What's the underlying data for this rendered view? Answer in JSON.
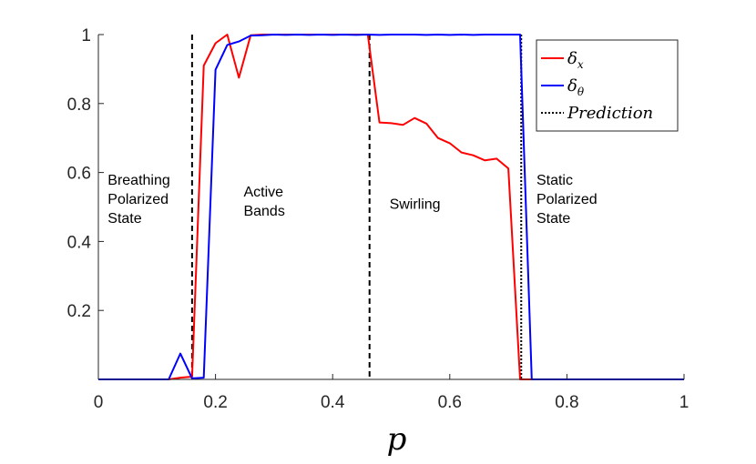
{
  "chart_data": {
    "type": "line",
    "title": "",
    "xlabel": "p",
    "ylabel": "",
    "xlim": [
      0,
      1
    ],
    "ylim": [
      0,
      1
    ],
    "xticks": [
      0,
      0.2,
      0.4,
      0.6,
      0.8,
      1
    ],
    "xtick_labels": [
      "0",
      "0.2",
      "0.4",
      "0.6",
      "0.8",
      "1"
    ],
    "yticks": [
      0.2,
      0.4,
      0.6,
      0.8,
      1
    ],
    "ytick_labels": [
      "0.2",
      "0.4",
      "0.6",
      "0.8",
      "1"
    ],
    "x": [
      0,
      0.02,
      0.04,
      0.06,
      0.08,
      0.1,
      0.12,
      0.14,
      0.16,
      0.18,
      0.2,
      0.22,
      0.24,
      0.26,
      0.28,
      0.3,
      0.32,
      0.34,
      0.36,
      0.38,
      0.4,
      0.42,
      0.44,
      0.46,
      0.48,
      0.5,
      0.52,
      0.54,
      0.56,
      0.58,
      0.6,
      0.62,
      0.64,
      0.66,
      0.68,
      0.7,
      0.72,
      0.74,
      0.76,
      0.78,
      0.8,
      0.82,
      0.84,
      0.86,
      0.88,
      0.9,
      0.92,
      0.94,
      0.96,
      0.98,
      1.0
    ],
    "series": [
      {
        "name": "δ_x",
        "color": "#ff0000",
        "values": [
          0,
          0,
          0,
          0,
          0,
          0,
          0,
          0.005,
          0.008,
          0.91,
          0.975,
          1.0,
          0.875,
          0.998,
          1.0,
          1.0,
          1.0,
          1.0,
          1.0,
          1.0,
          1.0,
          1.0,
          1.0,
          1.0,
          0.745,
          0.743,
          0.738,
          0.758,
          0.742,
          0.7,
          0.685,
          0.658,
          0.65,
          0.635,
          0.64,
          0.612,
          0,
          0,
          0,
          0,
          0,
          0,
          0,
          0,
          0,
          0,
          0,
          0,
          0,
          0,
          0
        ]
      },
      {
        "name": "δ_θ",
        "color": "#0000ff",
        "values": [
          0,
          0,
          0,
          0,
          0,
          0,
          0,
          0.075,
          0.003,
          0.005,
          0.898,
          0.97,
          0.98,
          0.997,
          0.998,
          1.0,
          0.999,
          1.0,
          0.999,
          1.0,
          0.999,
          1.0,
          0.999,
          1.0,
          0.999,
          1.0,
          1.0,
          1.0,
          0.999,
          1.0,
          0.999,
          1.0,
          0.999,
          1.0,
          1.0,
          1.0,
          1.0,
          0,
          0,
          0,
          0,
          0,
          0,
          0,
          0,
          0,
          0,
          0,
          0,
          0,
          0
        ]
      }
    ],
    "vlines": [
      {
        "x": 0.16,
        "style": "dashed",
        "color": "#000000"
      },
      {
        "x": 0.463,
        "style": "dashed",
        "color": "#000000"
      },
      {
        "x": 0.722,
        "style": "dotted",
        "color": "#000000"
      }
    ],
    "regions": [
      {
        "lines": [
          "Breathing",
          "Polarized",
          "State"
        ],
        "x": 0.016,
        "y": 0.565
      },
      {
        "lines": [
          "Active",
          "Bands"
        ],
        "x": 0.248,
        "y": 0.53
      },
      {
        "lines": [
          "Swirling"
        ],
        "x": 0.497,
        "y": 0.495
      },
      {
        "lines": [
          "Static",
          "Polarized",
          "State"
        ],
        "x": 0.748,
        "y": 0.565
      }
    ],
    "legend": {
      "position": "top-right",
      "entries": [
        {
          "symbol": "δ",
          "sub": "x",
          "color": "#ff0000",
          "style": "solid"
        },
        {
          "symbol": "δ",
          "sub": "θ",
          "color": "#0000ff",
          "style": "solid"
        },
        {
          "symbol": "Prediction",
          "sub": "",
          "color": "#000000",
          "style": "dotted"
        }
      ]
    }
  }
}
